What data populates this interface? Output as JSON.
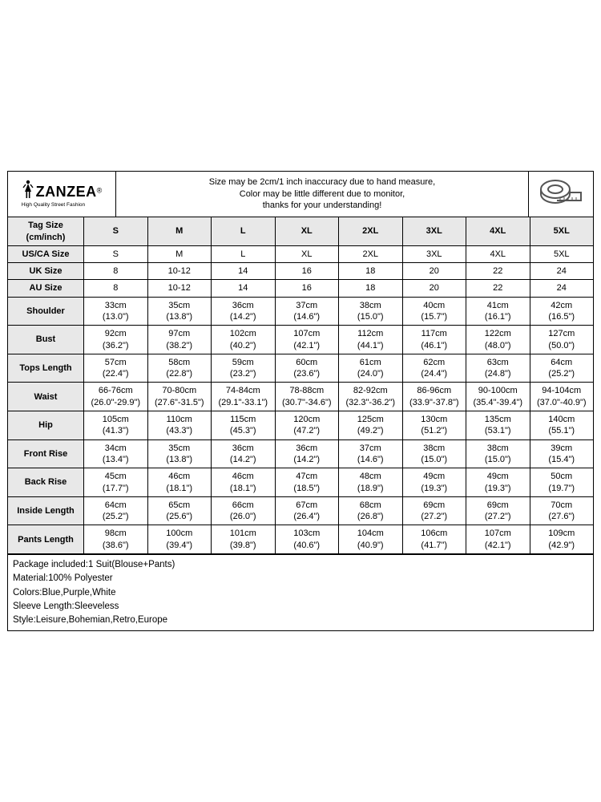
{
  "brand": {
    "name": "ZANZEA",
    "registered": "®",
    "tagline": "High Quality Street Fashion"
  },
  "note": {
    "l1": "Size may be 2cm/1 inch inaccuracy due to hand measure,",
    "l2": "Color may be little different due to monitor,",
    "l3": "thanks for your understanding!"
  },
  "headers": {
    "tag": "Tag Size\n(cm/inch)",
    "tag_line1": "Tag Size",
    "tag_line2": "(cm/inch)"
  },
  "sizes": [
    "S",
    "M",
    "L",
    "XL",
    "2XL",
    "3XL",
    "4XL",
    "5XL"
  ],
  "rows": [
    {
      "label": "US/CA Size",
      "cells": [
        "S",
        "M",
        "L",
        "XL",
        "2XL",
        "3XL",
        "4XL",
        "5XL"
      ],
      "single": true
    },
    {
      "label": "UK Size",
      "cells": [
        "8",
        "10-12",
        "14",
        "16",
        "18",
        "20",
        "22",
        "24"
      ],
      "single": true
    },
    {
      "label": "AU Size",
      "cells": [
        "8",
        "10-12",
        "14",
        "16",
        "18",
        "20",
        "22",
        "24"
      ],
      "single": true
    },
    {
      "label": "Shoulder",
      "cells": [
        [
          "33cm",
          "(13.0\")"
        ],
        [
          "35cm",
          "(13.8\")"
        ],
        [
          "36cm",
          "(14.2\")"
        ],
        [
          "37cm",
          "(14.6\")"
        ],
        [
          "38cm",
          "(15.0\")"
        ],
        [
          "40cm",
          "(15.7\")"
        ],
        [
          "41cm",
          "(16.1\")"
        ],
        [
          "42cm",
          "(16.5\")"
        ]
      ]
    },
    {
      "label": "Bust",
      "cells": [
        [
          "92cm",
          "(36.2\")"
        ],
        [
          "97cm",
          "(38.2\")"
        ],
        [
          "102cm",
          "(40.2\")"
        ],
        [
          "107cm",
          "(42.1\")"
        ],
        [
          "112cm",
          "(44.1\")"
        ],
        [
          "117cm",
          "(46.1\")"
        ],
        [
          "122cm",
          "(48.0\")"
        ],
        [
          "127cm",
          "(50.0\")"
        ]
      ]
    },
    {
      "label": "Tops Length",
      "cells": [
        [
          "57cm",
          "(22.4\")"
        ],
        [
          "58cm",
          "(22.8\")"
        ],
        [
          "59cm",
          "(23.2\")"
        ],
        [
          "60cm",
          "(23.6\")"
        ],
        [
          "61cm",
          "(24.0\")"
        ],
        [
          "62cm",
          "(24.4\")"
        ],
        [
          "63cm",
          "(24.8\")"
        ],
        [
          "64cm",
          "(25.2\")"
        ]
      ]
    },
    {
      "label": "Waist",
      "cells": [
        [
          "66-76cm",
          "(26.0\"-29.9\")"
        ],
        [
          "70-80cm",
          "(27.6\"-31.5\")"
        ],
        [
          "74-84cm",
          "(29.1\"-33.1\")"
        ],
        [
          "78-88cm",
          "(30.7\"-34.6\")"
        ],
        [
          "82-92cm",
          "(32.3\"-36.2\")"
        ],
        [
          "86-96cm",
          "(33.9\"-37.8\")"
        ],
        [
          "90-100cm",
          "(35.4\"-39.4\")"
        ],
        [
          "94-104cm",
          "(37.0\"-40.9\")"
        ]
      ]
    },
    {
      "label": "Hip",
      "cells": [
        [
          "105cm",
          "(41.3\")"
        ],
        [
          "110cm",
          "(43.3\")"
        ],
        [
          "115cm",
          "(45.3\")"
        ],
        [
          "120cm",
          "(47.2\")"
        ],
        [
          "125cm",
          "(49.2\")"
        ],
        [
          "130cm",
          "(51.2\")"
        ],
        [
          "135cm",
          "(53.1\")"
        ],
        [
          "140cm",
          "(55.1\")"
        ]
      ]
    },
    {
      "label": "Front Rise",
      "cells": [
        [
          "34cm",
          "(13.4\")"
        ],
        [
          "35cm",
          "(13.8\")"
        ],
        [
          "36cm",
          "(14.2\")"
        ],
        [
          "36cm",
          "(14.2\")"
        ],
        [
          "37cm",
          "(14.6\")"
        ],
        [
          "38cm",
          "(15.0\")"
        ],
        [
          "38cm",
          "(15.0\")"
        ],
        [
          "39cm",
          "(15.4\")"
        ]
      ]
    },
    {
      "label": "Back Rise",
      "cells": [
        [
          "45cm",
          "(17.7\")"
        ],
        [
          "46cm",
          "(18.1\")"
        ],
        [
          "46cm",
          "(18.1\")"
        ],
        [
          "47cm",
          "(18.5\")"
        ],
        [
          "48cm",
          "(18.9\")"
        ],
        [
          "49cm",
          "(19.3\")"
        ],
        [
          "49cm",
          "(19.3\")"
        ],
        [
          "50cm",
          "(19.7\")"
        ]
      ]
    },
    {
      "label": "Inside Length",
      "cells": [
        [
          "64cm",
          "(25.2\")"
        ],
        [
          "65cm",
          "(25.6\")"
        ],
        [
          "66cm",
          "(26.0\")"
        ],
        [
          "67cm",
          "(26.4\")"
        ],
        [
          "68cm",
          "(26.8\")"
        ],
        [
          "69cm",
          "(27.2\")"
        ],
        [
          "69cm",
          "(27.2\")"
        ],
        [
          "70cm",
          "(27.6\")"
        ]
      ]
    },
    {
      "label": "Pants Length",
      "cells": [
        [
          "98cm",
          "(38.6\")"
        ],
        [
          "100cm",
          "(39.4\")"
        ],
        [
          "101cm",
          "(39.8\")"
        ],
        [
          "103cm",
          "(40.6\")"
        ],
        [
          "104cm",
          "(40.9\")"
        ],
        [
          "106cm",
          "(41.7\")"
        ],
        [
          "107cm",
          "(42.1\")"
        ],
        [
          "109cm",
          "(42.9\")"
        ]
      ]
    }
  ],
  "footer": [
    "Package included:1 Suit(Blouse+Pants)",
    "Material:100% Polyester",
    "Colors:Blue,Purple,White",
    "Sleeve Length:Sleeveless",
    "Style:Leisure,Bohemian,Retro,Europe"
  ],
  "style": {
    "border_color": "#000000",
    "header_bg": "#e8e8e8",
    "bg": "#ffffff",
    "font": "Arial",
    "cell_fontsize": 11,
    "notes_fontsize": 11.5
  }
}
